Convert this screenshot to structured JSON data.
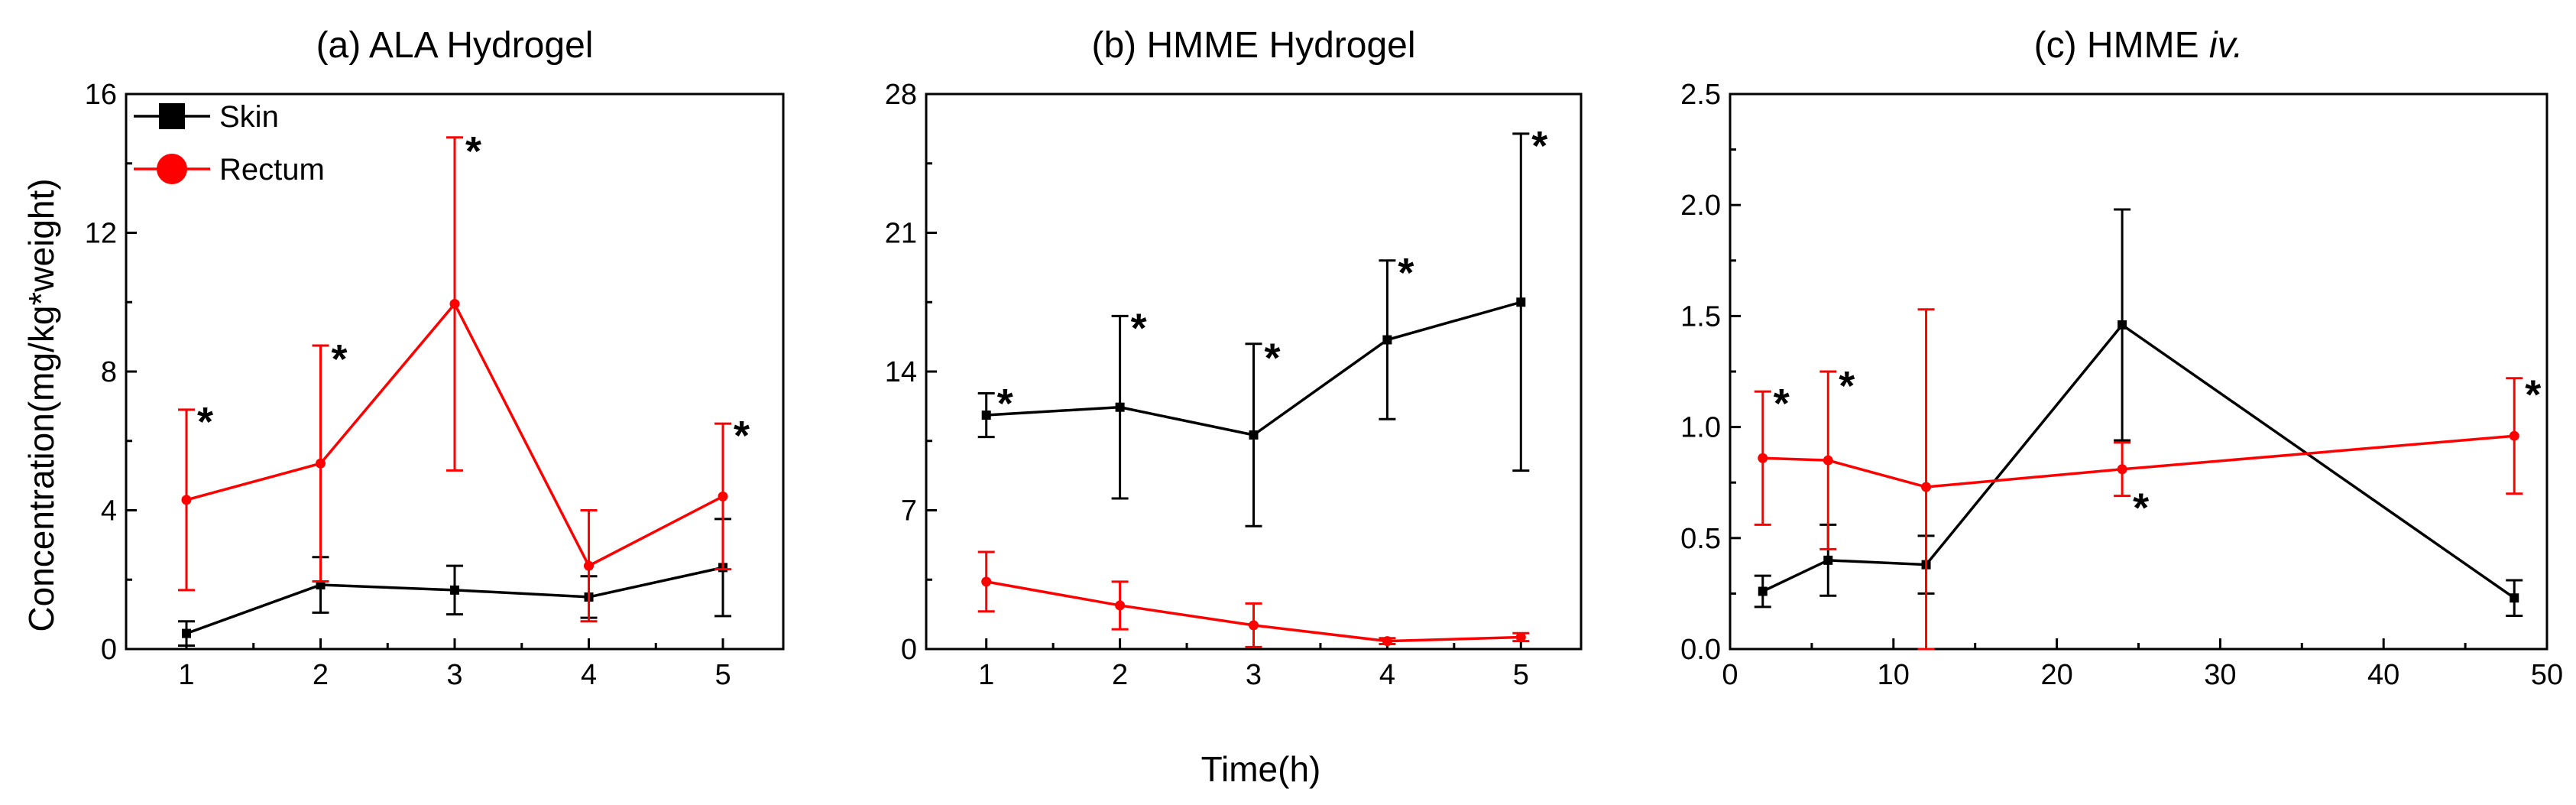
{
  "figure": {
    "ylabel": "Concentration(mg/kg*weight)",
    "xlabel": "Time(h)"
  },
  "chart_data": [
    {
      "type": "line",
      "title_main": "(a) ALA Hydrogel",
      "title_italic": "",
      "xticks": [
        1,
        2,
        3,
        4,
        5
      ],
      "xlim": [
        0.55,
        5.45
      ],
      "yticks": [
        0,
        4,
        8,
        12,
        16
      ],
      "ylim": [
        0,
        16
      ],
      "legend": {
        "position": "top-left",
        "entries": [
          "Skin",
          "Rectum"
        ]
      },
      "series": [
        {
          "name": "Skin",
          "color": "#000000",
          "marker": "square",
          "x": [
            1,
            2,
            3,
            4,
            5
          ],
          "y": [
            0.45,
            1.85,
            1.7,
            1.5,
            2.35
          ],
          "err": [
            0.35,
            0.8,
            0.7,
            0.6,
            1.4
          ]
        },
        {
          "name": "Rectum",
          "color": "#ff0000",
          "marker": "circle",
          "x": [
            1,
            2,
            3,
            4,
            5
          ],
          "y": [
            4.3,
            5.35,
            9.95,
            2.4,
            4.4
          ],
          "err": [
            2.6,
            3.4,
            4.8,
            1.6,
            2.1
          ]
        }
      ],
      "annotations": [
        {
          "text": "*",
          "x": 1,
          "y": 6.9
        },
        {
          "text": "*",
          "x": 2,
          "y": 8.7
        },
        {
          "text": "*",
          "x": 3,
          "y": 14.7
        },
        {
          "text": "*",
          "x": 5,
          "y": 6.5
        }
      ]
    },
    {
      "type": "line",
      "title_main": "(b) HMME Hydrogel",
      "title_italic": "",
      "xticks": [
        1,
        2,
        3,
        4,
        5
      ],
      "xlim": [
        0.55,
        5.45
      ],
      "yticks": [
        0,
        7,
        14,
        21,
        28
      ],
      "ylim": [
        0,
        28
      ],
      "series": [
        {
          "name": "Skin",
          "color": "#000000",
          "marker": "square",
          "x": [
            1,
            2,
            3,
            4,
            5
          ],
          "y": [
            11.8,
            12.2,
            10.8,
            15.6,
            17.5
          ],
          "err": [
            1.1,
            4.6,
            4.6,
            4.0,
            8.5
          ]
        },
        {
          "name": "Rectum",
          "color": "#ff0000",
          "marker": "circle",
          "x": [
            1,
            2,
            3,
            4,
            5
          ],
          "y": [
            3.4,
            2.2,
            1.2,
            0.4,
            0.6
          ],
          "err": [
            1.5,
            1.2,
            1.1,
            0.15,
            0.2
          ]
        }
      ],
      "annotations": [
        {
          "text": "*",
          "x": 1,
          "y": 13.0
        },
        {
          "text": "*",
          "x": 2,
          "y": 16.8
        },
        {
          "text": "*",
          "x": 3,
          "y": 15.3
        },
        {
          "text": "*",
          "x": 4,
          "y": 19.6
        },
        {
          "text": "*",
          "x": 5,
          "y": 26.0
        }
      ]
    },
    {
      "type": "line",
      "title_main": "(c) HMME ",
      "title_italic": "iv.",
      "xticks": [
        0,
        10,
        20,
        30,
        40,
        50
      ],
      "xlim": [
        0,
        50
      ],
      "yticks": [
        0.0,
        0.5,
        1.0,
        1.5,
        2.0,
        2.5
      ],
      "ytick_labels": [
        "0.0",
        "0.5",
        "1.0",
        "1.5",
        "2.0",
        "2.5"
      ],
      "ylim": [
        0,
        2.5
      ],
      "series": [
        {
          "name": "Skin",
          "color": "#000000",
          "marker": "square",
          "x": [
            2,
            6,
            12,
            24,
            48
          ],
          "y": [
            0.26,
            0.4,
            0.38,
            1.46,
            0.23
          ],
          "err": [
            0.07,
            0.16,
            0.13,
            0.52,
            0.08
          ]
        },
        {
          "name": "Rectum",
          "color": "#ff0000",
          "marker": "circle",
          "x": [
            2,
            6,
            12,
            24,
            48
          ],
          "y": [
            0.86,
            0.85,
            0.73,
            0.81,
            0.96
          ],
          "err": [
            0.3,
            0.4,
            0.8,
            0.12,
            0.26
          ]
        }
      ],
      "annotations": [
        {
          "text": "*",
          "x": 2,
          "y": 1.16
        },
        {
          "text": "*",
          "x": 6,
          "y": 1.24
        },
        {
          "text": "*",
          "x": 24,
          "y": 0.69
        },
        {
          "text": "*",
          "x": 48,
          "y": 1.2
        }
      ]
    }
  ]
}
